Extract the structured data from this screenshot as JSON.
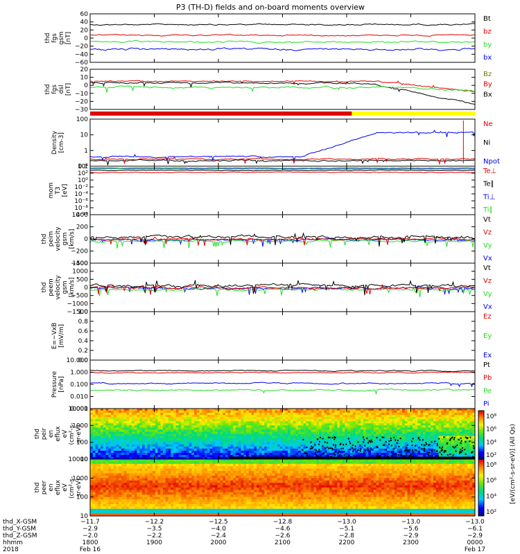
{
  "title": "P3 (TH-D) fields and on-board moments overview",
  "colors": {
    "black": "#000000",
    "red": "#e00000",
    "green": "#22dd22",
    "blue": "#0000ee",
    "yellow": "#ffff00",
    "olive": "#7a7a00"
  },
  "chart_data": [
    {
      "type": "line",
      "panel": "fgs_gsm_B",
      "ylabel": [
        "thd",
        "fgs",
        "gsm",
        "[nT]"
      ],
      "yticks": [
        "60",
        "40",
        "20",
        "0",
        "−20",
        "−40",
        "−60"
      ],
      "ylim": [
        -60,
        60
      ],
      "series": [
        {
          "name": "Bt",
          "color": "#000000",
          "level": 33
        },
        {
          "name": "bz",
          "color": "#e00000",
          "level": 7
        },
        {
          "name": "by",
          "color": "#22dd22",
          "level": -10
        },
        {
          "name": "bx",
          "color": "#0000ee",
          "level": -25
        }
      ]
    },
    {
      "type": "line",
      "panel": "fgs_dsl_B",
      "ylabel": [
        "thd",
        "fgs",
        "dsl",
        "[nT]"
      ],
      "yticks": [
        "20",
        "10",
        "0",
        "−10",
        "−20",
        "−30"
      ],
      "ylim": [
        -35,
        25
      ],
      "series": [
        {
          "name": "Bz",
          "color": "#7a7a00",
          "level": 0
        },
        {
          "name": "By",
          "color": "#e00000",
          "level": 0
        },
        {
          "name": "Bx",
          "color": "#000000",
          "level": -3
        },
        {
          "name": "",
          "color": "#22dd22",
          "level": -8
        }
      ]
    },
    {
      "type": "line",
      "panel": "density",
      "ylabel": [
        "Density",
        "[cm-3]"
      ],
      "log": true,
      "yticks": [
        "100",
        "10",
        "1",
        "0.1"
      ],
      "ylim": [
        0.05,
        200
      ],
      "series": [
        {
          "name": "Ne",
          "color": "#e00000",
          "level": 0.25
        },
        {
          "name": "Ni",
          "color": "#000000",
          "level": 0.2
        },
        {
          "name": "Npot",
          "color": "#0000ee",
          "level": 0.3
        }
      ]
    },
    {
      "type": "line",
      "panel": "temperature",
      "ylabel": [
        "mom",
        "T3",
        "[eV]"
      ],
      "log": true,
      "yticks": [
        "10⁴",
        "10²",
        "10⁰",
        "10⁻²",
        "10⁻⁴",
        "10⁻⁶",
        "10⁻⁸",
        "10⁻¹⁰"
      ],
      "series": [
        {
          "name": "Te⊥",
          "color": "#e00000"
        },
        {
          "name": "Te∥",
          "color": "#000000"
        },
        {
          "name": "Ti⊥",
          "color": "#0000ee"
        },
        {
          "name": "Ti∥",
          "color": "#22dd22"
        }
      ]
    },
    {
      "type": "line",
      "panel": "peim_velocity",
      "ylabel": [
        "thd",
        "peim",
        "velocity",
        "gsm",
        "[km/s]"
      ],
      "yticks": [
        "400",
        "200",
        "0",
        "−200",
        "−400"
      ],
      "ylim": [
        -400,
        400
      ],
      "series": [
        {
          "name": "Vt",
          "color": "#000000",
          "level": 60
        },
        {
          "name": "Vz",
          "color": "#e00000",
          "level": 5
        },
        {
          "name": "Vy",
          "color": "#22dd22",
          "level": -30
        },
        {
          "name": "Vx",
          "color": "#0000ee",
          "level": -10
        }
      ]
    },
    {
      "type": "line",
      "panel": "peem_velocity",
      "ylabel": [
        "thd",
        "peem",
        "velocity",
        "gsm",
        "[km/s]"
      ],
      "yticks": [
        "1500",
        "1000",
        "500",
        "0",
        "−500",
        "−1000",
        "−1500"
      ],
      "ylim": [
        -1500,
        1500
      ],
      "series": [
        {
          "name": "Vt",
          "color": "#000000",
          "level": 200
        },
        {
          "name": "Vz",
          "color": "#e00000",
          "level": 50
        },
        {
          "name": "Vy",
          "color": "#22dd22",
          "level": -100
        },
        {
          "name": "Vx",
          "color": "#0000ee",
          "level": -50
        }
      ]
    },
    {
      "type": "line",
      "panel": "E_VxB",
      "ylabel": [
        "E=−VxB",
        "[mV/m]"
      ],
      "yticks": [
        "1.0",
        "0.8",
        "0.6",
        "0.4",
        "0.2",
        "0.0"
      ],
      "ylim": [
        0,
        1
      ],
      "series": [
        {
          "name": "Ez",
          "color": "#e00000"
        },
        {
          "name": "Ey",
          "color": "#22dd22"
        },
        {
          "name": "Ex",
          "color": "#0000ee"
        }
      ]
    },
    {
      "type": "line",
      "panel": "pressure",
      "ylabel": [
        "Pressure",
        "[nPa]"
      ],
      "log": true,
      "yticks": [
        "10.000",
        "1.000",
        "0.100",
        "0.010",
        "0.001"
      ],
      "ylim": [
        0.001,
        10
      ],
      "series": [
        {
          "name": "Pt",
          "color": "#000000",
          "level": 0.8
        },
        {
          "name": "Pb",
          "color": "#e00000",
          "level": 0.65
        },
        {
          "name": "Pe",
          "color": "#22dd22",
          "level": 0.05
        },
        {
          "name": "Pi",
          "color": "#0000ee",
          "level": 0.15
        }
      ]
    },
    {
      "type": "heatmap",
      "panel": "peir_en_eflux",
      "ylabel": [
        "thd",
        "peir",
        "en",
        "eflux",
        "eV",
        "(cm²-s-",
        "sr-eV)"
      ],
      "yticks": [
        "10000",
        "1000",
        "100",
        "10"
      ]
    },
    {
      "type": "heatmap",
      "panel": "peer_en_eflux",
      "ylabel": [
        "thd",
        "peer",
        "en",
        "eflux",
        "eV",
        "(cm²-s-",
        "sr-eV)"
      ],
      "yticks": [
        "10000",
        "1000",
        "100",
        "10"
      ]
    }
  ],
  "colorbar": {
    "label": "[eV/(cm²-s-sr-eV)] (All Qs)",
    "ticks_top": [
      "10⁸",
      "10⁶",
      "10⁴",
      "10²"
    ],
    "ticks_bottom": [
      "10⁸",
      "10⁶",
      "10⁴",
      "10²"
    ]
  },
  "x_axis": {
    "rows": [
      {
        "label": "thd_X-GSM",
        "values": [
          "−11.7",
          "−12.2",
          "−12.5",
          "−12.8",
          "−13.0",
          "−13.0",
          "−13.0"
        ]
      },
      {
        "label": "thd_Y-GSM",
        "values": [
          "−2.9",
          "−3.5",
          "−4.0",
          "−4.6",
          "−5.1",
          "−5.6",
          "−6.1"
        ]
      },
      {
        "label": "thd_Z-GSM",
        "values": [
          "−2.0",
          "−2.2",
          "−2.4",
          "−2.6",
          "−2.8",
          "−2.9",
          "−2.9"
        ]
      },
      {
        "label": "hhmm",
        "values": [
          "1800",
          "1900",
          "2000",
          "2100",
          "2200",
          "2300",
          "0000"
        ]
      }
    ],
    "year": "2018",
    "dates": [
      "Feb 16",
      "Feb 17"
    ]
  }
}
